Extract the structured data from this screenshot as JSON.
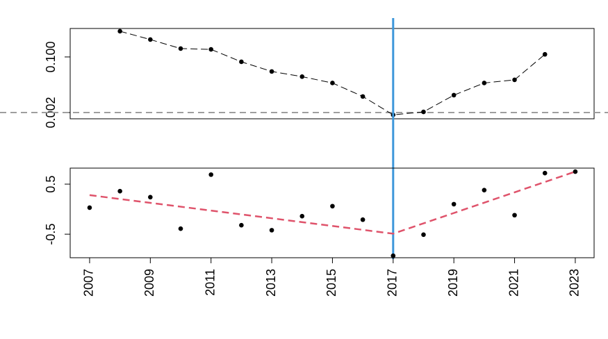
{
  "chart_data": [
    {
      "type": "line",
      "x": [
        2008,
        2009,
        2010,
        2011,
        2012,
        2013,
        2014,
        2015,
        2016,
        2017,
        2018,
        2019,
        2020,
        2021,
        2022
      ],
      "values": [
        0.61,
        0.34,
        0.18,
        0.17,
        0.071,
        0.036,
        0.025,
        0.016,
        0.0062,
        0.0017,
        0.0021,
        0.0068,
        0.016,
        0.02,
        0.12
      ],
      "color": "#000000",
      "linestyle": "dashed",
      "log_y": true,
      "ylim": [
        0.00129,
        0.74
      ],
      "yticks": [
        0.002,
        {
          "value": 0.1,
          "label": "0.100"
        }
      ],
      "xlim": [
        2006.36,
        2023.62
      ],
      "hline": {
        "value": 0.002,
        "color": "#9e9e9e"
      },
      "vline": {
        "value": 2017,
        "color": "#3d97da"
      }
    },
    {
      "type": "scatter",
      "x": [
        2007,
        2008,
        2009,
        2010,
        2011,
        2012,
        2013,
        2014,
        2015,
        2016,
        2017,
        2018,
        2019,
        2020,
        2021,
        2022,
        2023
      ],
      "values": [
        0.03,
        0.36,
        0.24,
        -0.39,
        0.69,
        -0.32,
        -0.42,
        -0.14,
        0.06,
        -0.21,
        -0.93,
        -0.51,
        0.1,
        0.38,
        -0.12,
        0.72,
        0.75
      ],
      "color": "#000000",
      "fit": {
        "x": [
          2007,
          2017,
          2023
        ],
        "values": [
          0.28,
          -0.49,
          0.75
        ],
        "color": "#df536b"
      },
      "ylim": [
        -0.97,
        0.82
      ],
      "yticks": [
        -0.5,
        0.5
      ],
      "xlim": [
        2006.36,
        2023.62
      ],
      "xticks": [
        2007,
        2009,
        2011,
        2013,
        2015,
        2017,
        2019,
        2021,
        2023
      ]
    }
  ]
}
